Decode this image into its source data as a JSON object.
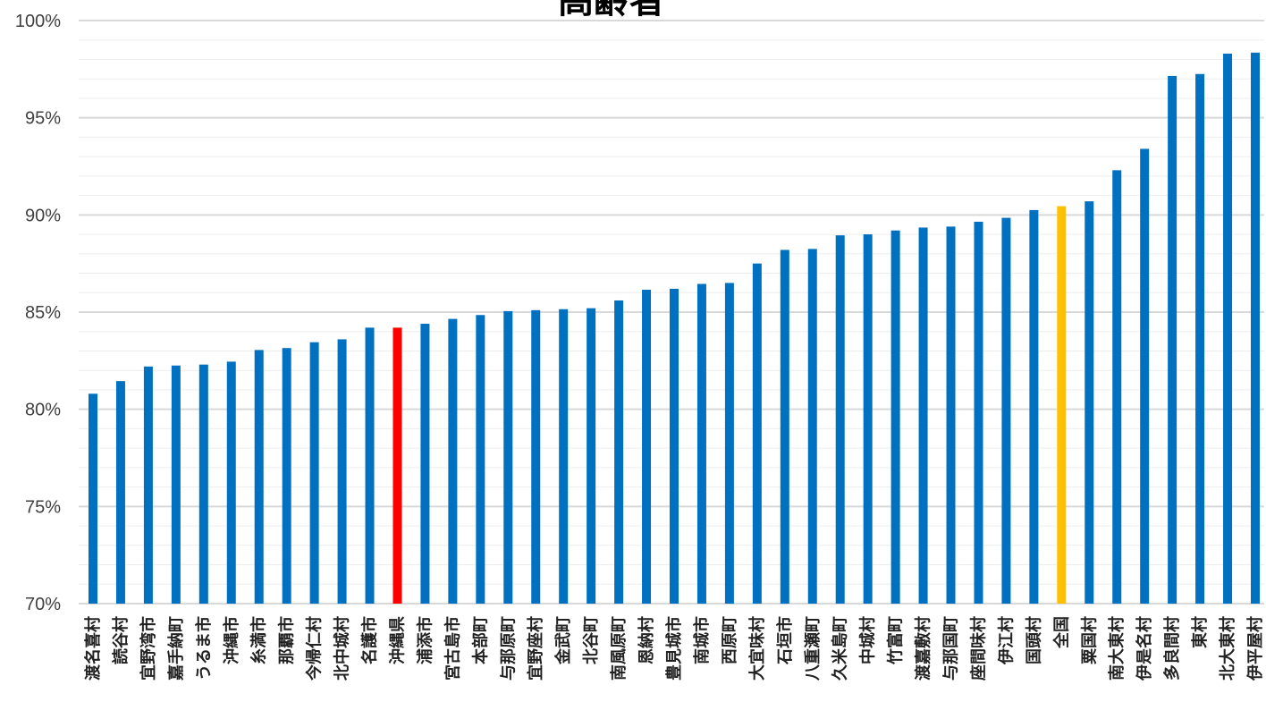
{
  "chart_data": {
    "type": "bar",
    "title": "高齢者",
    "xlabel": "",
    "ylabel": "",
    "ylim": [
      70,
      100
    ],
    "y_ticks": [
      "70%",
      "75%",
      "80%",
      "85%",
      "90%",
      "95%",
      "100%"
    ],
    "grid": true,
    "colors": {
      "default": "#0070C0",
      "prefecture": "#FF0000",
      "national": "#FFC000",
      "major_grid": "#D9D9D9",
      "minor_grid": "#EDEDED"
    },
    "highlight": {
      "沖縄県": "prefecture",
      "全国": "national"
    },
    "categories": [
      "渡名喜村",
      "読谷村",
      "宜野湾市",
      "嘉手納町",
      "うるま市",
      "沖縄市",
      "糸満市",
      "那覇市",
      "今帰仁村",
      "北中城村",
      "名護市",
      "沖縄県",
      "浦添市",
      "宮古島市",
      "本部町",
      "与那原町",
      "宜野座村",
      "金武町",
      "北谷町",
      "南風原町",
      "恩納村",
      "豊見城市",
      "南城市",
      "西原町",
      "大宜味村",
      "石垣市",
      "八重瀬町",
      "久米島町",
      "中城村",
      "竹富町",
      "渡嘉敷村",
      "与那国町",
      "座間味村",
      "伊江村",
      "国頭村",
      "全国",
      "粟国村",
      "南大東村",
      "伊是名村",
      "多良間村",
      "東村",
      "北大東村",
      "伊平屋村"
    ],
    "values": [
      80.8,
      81.45,
      82.2,
      82.25,
      82.3,
      82.45,
      83.05,
      83.15,
      83.45,
      83.6,
      84.2,
      84.2,
      84.4,
      84.65,
      84.85,
      85.05,
      85.1,
      85.15,
      85.2,
      85.6,
      86.15,
      86.2,
      86.45,
      86.5,
      87.5,
      88.2,
      88.25,
      88.95,
      89.0,
      89.2,
      89.35,
      89.4,
      89.65,
      89.85,
      90.25,
      90.45,
      90.7,
      92.3,
      93.4,
      97.15,
      97.25,
      98.3,
      98.35
    ]
  }
}
